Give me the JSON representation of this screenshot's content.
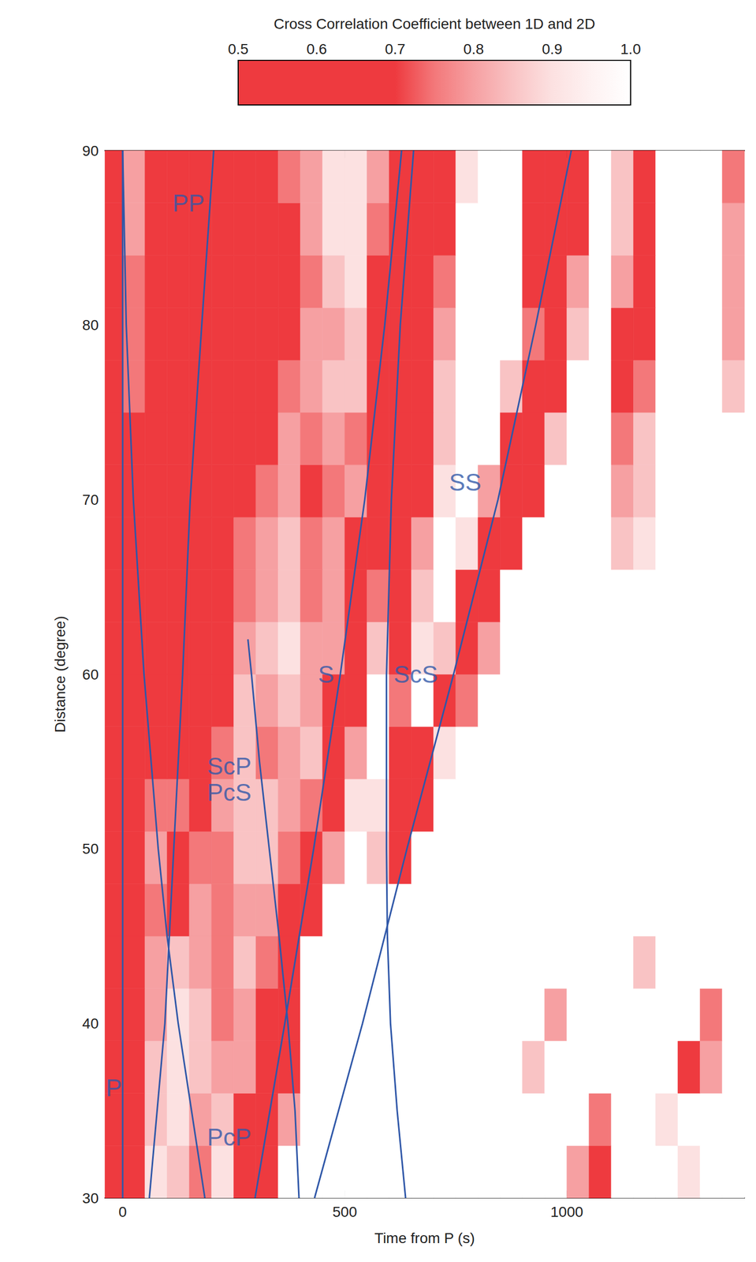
{
  "chart_data": {
    "type": "heatmap",
    "x_label": "Time from P (s)",
    "y_label": "Distance (degree)",
    "xlim": [
      -40,
      1400
    ],
    "xticks": [
      0,
      500,
      1000
    ],
    "ylim": [
      30,
      90
    ],
    "yticks": [
      30,
      40,
      50,
      60,
      70,
      80,
      90
    ],
    "grid": false,
    "heatmap": {
      "time_edges": [
        -50,
        0,
        50,
        100,
        150,
        200,
        250,
        300,
        350,
        400,
        450,
        500,
        550,
        600,
        650,
        700,
        750,
        800,
        850,
        900,
        950,
        1000,
        1050,
        1100,
        1150,
        1200,
        1250,
        1300,
        1350,
        1400
      ],
      "distance_edges": [
        30,
        33,
        36,
        39,
        42,
        45,
        48,
        51,
        54,
        57,
        60,
        63,
        66,
        69,
        72,
        75,
        78,
        81,
        84,
        87,
        90
      ],
      "cells": [
        [
          0.6,
          0.6,
          0.9,
          0.85,
          0.75,
          0.9,
          0.6,
          0.65,
          1,
          1,
          1,
          1,
          1,
          1,
          1,
          1,
          1,
          1,
          1,
          1,
          1,
          0.8,
          0.6,
          1,
          1,
          1,
          0.9,
          1,
          1
        ],
        [
          0.6,
          0.6,
          0.85,
          0.9,
          0.8,
          0.85,
          0.7,
          0.6,
          0.8,
          1,
          1,
          1,
          1,
          1,
          1,
          1,
          1,
          1,
          1,
          1,
          1,
          1,
          0.75,
          1,
          1,
          0.9,
          1,
          1,
          1
        ],
        [
          0.6,
          0.6,
          0.85,
          0.9,
          0.85,
          0.8,
          0.8,
          0.6,
          0.65,
          1,
          1,
          1,
          1,
          1,
          1,
          1,
          1,
          1,
          1,
          0.85,
          1,
          1,
          1,
          1,
          1,
          1,
          0.7,
          0.8,
          1
        ],
        [
          0.6,
          0.6,
          0.8,
          0.9,
          0.85,
          0.75,
          0.8,
          0.7,
          0.6,
          1,
          1,
          1,
          1,
          1,
          1,
          1,
          1,
          1,
          1,
          1,
          0.8,
          1,
          1,
          1,
          1,
          1,
          1,
          0.75,
          1
        ],
        [
          0.6,
          0.6,
          0.8,
          0.85,
          0.8,
          0.75,
          0.85,
          0.75,
          0.55,
          1,
          1,
          1,
          1,
          1,
          1,
          1,
          1,
          1,
          1,
          1,
          1,
          1,
          1,
          1,
          0.85,
          1,
          1,
          1,
          1
        ],
        [
          0.6,
          0.6,
          0.75,
          0.7,
          0.8,
          0.75,
          0.8,
          0.8,
          0.6,
          0.6,
          1,
          1,
          1,
          1,
          1,
          1,
          1,
          1,
          1,
          1,
          1,
          1,
          1,
          1,
          1,
          1,
          1,
          1,
          1
        ],
        [
          0.6,
          0.6,
          0.8,
          0.7,
          0.75,
          0.75,
          0.85,
          0.85,
          0.75,
          0.6,
          0.8,
          1,
          0.85,
          0.6,
          1,
          1,
          1,
          1,
          1,
          1,
          1,
          1,
          1,
          1,
          1,
          1,
          1,
          1,
          1
        ],
        [
          0.6,
          0.65,
          0.75,
          0.75,
          0.7,
          0.8,
          0.85,
          0.85,
          0.8,
          0.75,
          0.6,
          0.9,
          0.9,
          0.6,
          0.7,
          1,
          1,
          1,
          1,
          1,
          1,
          1,
          1,
          1,
          1,
          1,
          1,
          1,
          1
        ],
        [
          0.6,
          0.65,
          0.7,
          0.7,
          0.7,
          0.75,
          0.85,
          0.75,
          0.8,
          0.85,
          0.6,
          0.8,
          1,
          0.65,
          0.6,
          0.9,
          1,
          1,
          1,
          1,
          1,
          1,
          1,
          1,
          1,
          1,
          1,
          1,
          1
        ],
        [
          0.6,
          0.65,
          0.7,
          0.65,
          0.7,
          0.7,
          0.85,
          0.8,
          0.85,
          0.8,
          0.65,
          0.6,
          1,
          0.75,
          1,
          0.6,
          0.75,
          1,
          1,
          1,
          1,
          1,
          1,
          1,
          1,
          1,
          1,
          1,
          1
        ],
        [
          0.6,
          0.65,
          0.7,
          0.65,
          0.65,
          0.7,
          0.8,
          0.85,
          0.9,
          0.8,
          0.8,
          0.6,
          0.85,
          0.6,
          0.9,
          0.85,
          0.6,
          0.8,
          1,
          1,
          1,
          1,
          1,
          1,
          1,
          1,
          1,
          1,
          1
        ],
        [
          0.6,
          0.65,
          0.65,
          0.6,
          0.65,
          0.7,
          0.75,
          0.8,
          0.85,
          0.75,
          0.8,
          0.6,
          0.75,
          0.6,
          0.85,
          1,
          0.7,
          0.6,
          1,
          1,
          1,
          1,
          1,
          1,
          1,
          1,
          1,
          1,
          1
        ],
        [
          0.6,
          0.7,
          0.6,
          0.6,
          0.65,
          0.65,
          0.75,
          0.8,
          0.85,
          0.75,
          0.8,
          0.65,
          0.6,
          0.6,
          0.8,
          1,
          0.9,
          0.6,
          0.7,
          1,
          1,
          1,
          1,
          0.85,
          0.9,
          1,
          1,
          1,
          1
        ],
        [
          0.6,
          0.7,
          0.6,
          0.6,
          0.6,
          0.65,
          0.7,
          0.75,
          0.8,
          0.7,
          0.75,
          0.8,
          0.6,
          0.6,
          0.65,
          0.9,
          1,
          0.8,
          0.6,
          0.7,
          1,
          1,
          1,
          0.8,
          0.85,
          1,
          1,
          1,
          1
        ],
        [
          0.6,
          0.7,
          0.6,
          0.65,
          0.6,
          0.6,
          0.7,
          0.7,
          0.8,
          0.75,
          0.8,
          0.75,
          0.6,
          0.6,
          0.6,
          0.85,
          1,
          1,
          0.7,
          0.6,
          0.85,
          1,
          1,
          0.75,
          0.85,
          1,
          1,
          1,
          1
        ],
        [
          0.6,
          0.75,
          0.6,
          0.65,
          0.6,
          0.6,
          0.65,
          0.7,
          0.75,
          0.8,
          0.85,
          0.85,
          0.6,
          0.6,
          0.65,
          0.85,
          1,
          1,
          0.85,
          0.6,
          0.65,
          1,
          1,
          0.7,
          0.75,
          1,
          1,
          1,
          0.85
        ],
        [
          0.6,
          0.75,
          0.6,
          0.6,
          0.6,
          0.6,
          0.6,
          0.65,
          0.7,
          0.8,
          0.8,
          0.85,
          0.65,
          0.6,
          0.6,
          0.8,
          1,
          1,
          1,
          0.75,
          0.6,
          0.85,
          1,
          0.7,
          0.65,
          1,
          1,
          1,
          0.8
        ],
        [
          0.6,
          0.75,
          0.65,
          0.6,
          0.6,
          0.6,
          0.6,
          0.65,
          0.7,
          0.75,
          0.85,
          0.9,
          0.7,
          0.6,
          0.6,
          0.75,
          1,
          1,
          1,
          0.7,
          0.6,
          0.8,
          1,
          0.8,
          0.6,
          1,
          1,
          1,
          0.8
        ],
        [
          0.6,
          0.8,
          0.65,
          0.6,
          0.6,
          0.6,
          0.65,
          0.65,
          0.7,
          0.8,
          0.9,
          0.9,
          0.75,
          0.6,
          0.6,
          0.7,
          1,
          1,
          1,
          0.65,
          0.6,
          0.7,
          1,
          0.85,
          0.6,
          1,
          1,
          1,
          0.8
        ],
        [
          0.6,
          0.8,
          0.7,
          0.6,
          0.6,
          0.65,
          0.65,
          0.7,
          0.75,
          0.8,
          0.9,
          0.9,
          0.8,
          0.6,
          0.6,
          0.6,
          0.9,
          1,
          1,
          0.6,
          0.6,
          0.6,
          1,
          0.85,
          0.6,
          1,
          1,
          1,
          0.75
        ]
      ]
    },
    "colorbar": {
      "title": "Cross Correlation Coefficient between 1D and 2D",
      "range": [
        0.5,
        1.0
      ],
      "ticks": [
        0.5,
        0.6,
        0.7,
        0.8,
        0.9,
        {
          "value": 1,
          "label": "1.0"
        }
      ]
    },
    "series": [
      {
        "labels": [
          "P"
        ],
        "type": "line",
        "color": "#2f57a8",
        "x": [
          0,
          0
        ],
        "y": [
          30,
          90
        ],
        "label_at": [
          -38,
          36.3
        ]
      },
      {
        "labels": [
          "PP"
        ],
        "type": "line",
        "color": "#2f57a8",
        "x": [
          60,
          95,
          115,
          135,
          152,
          178,
          205
        ],
        "y": [
          30,
          40,
          50,
          60,
          70,
          80,
          90
        ],
        "label_at": [
          112,
          87
        ]
      },
      {
        "labels": [
          "PcP"
        ],
        "type": "line",
        "color": "#2f57a8",
        "x": [
          185,
          155,
          125,
          100,
          80,
          48,
          24,
          8,
          0
        ],
        "y": [
          30,
          35,
          40,
          45,
          50,
          60,
          70,
          80,
          90
        ],
        "label_at": [
          190,
          33.5
        ]
      },
      {
        "labels": [
          "ScP",
          "PcS"
        ],
        "type": "line",
        "color": "#2f57a8",
        "x": [
          397,
          388,
          372,
          352,
          330,
          308,
          290,
          282
        ],
        "y": [
          30,
          35,
          40,
          45,
          50,
          55,
          60,
          62
        ],
        "label_at": [
          190,
          54
        ]
      },
      {
        "labels": [
          "S"
        ],
        "type": "line",
        "color": "#2f57a8",
        "x": [
          298,
          365,
          430,
          490,
          545,
          590,
          628
        ],
        "y": [
          30,
          40,
          50,
          60,
          70,
          80,
          90
        ],
        "label_at": [
          440,
          60
        ]
      },
      {
        "labels": [
          "ScS"
        ],
        "type": "line",
        "color": "#2f57a8",
        "x": [
          637,
          618,
          603,
          596,
          594,
          594,
          605,
          625,
          655
        ],
        "y": [
          30,
          35,
          40,
          45,
          50,
          60,
          70,
          80,
          90
        ],
        "label_at": [
          610,
          60
        ]
      },
      {
        "labels": [
          "SS"
        ],
        "type": "line",
        "color": "#2f57a8",
        "x": [
          432,
          540,
          640,
          745,
          845,
          930,
          1010
        ],
        "y": [
          30,
          40,
          50,
          60,
          70,
          80,
          90
        ],
        "label_at": [
          735,
          71
        ]
      }
    ]
  }
}
